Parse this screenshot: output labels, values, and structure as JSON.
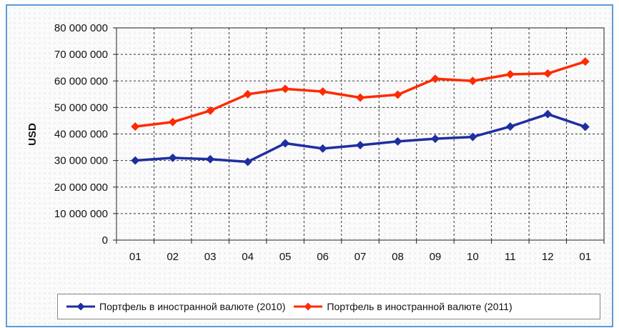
{
  "chart_data": {
    "type": "line",
    "categories": [
      "01",
      "02",
      "03",
      "04",
      "05",
      "06",
      "07",
      "08",
      "09",
      "10",
      "11",
      "12",
      "01"
    ],
    "series": [
      {
        "name": "Портфель в иностранной валюте (2010)",
        "color": "#1f2fa0",
        "marker": "diamond",
        "values": [
          30000000,
          31000000,
          30500000,
          29500000,
          36500000,
          34500000,
          35800000,
          37200000,
          38200000,
          38900000,
          42800000,
          47500000,
          42700000
        ]
      },
      {
        "name": "Портфель в иностранной валюте (2011)",
        "color": "#ff2a00",
        "marker": "diamond",
        "values": [
          42800000,
          44500000,
          48800000,
          55000000,
          57000000,
          56000000,
          53700000,
          54800000,
          60800000,
          60000000,
          62500000,
          62800000,
          67300000
        ]
      }
    ],
    "ylabel": "USD",
    "xlabel": "",
    "title": "",
    "ylim": [
      0,
      80000000
    ],
    "yticks": [
      "0",
      "10 000 000",
      "20 000 000",
      "30 000 000",
      "40 000 000",
      "50 000 000",
      "60 000 000",
      "70 000 000",
      "80 000 000"
    ],
    "grid": true,
    "legend_position": "bottom"
  }
}
